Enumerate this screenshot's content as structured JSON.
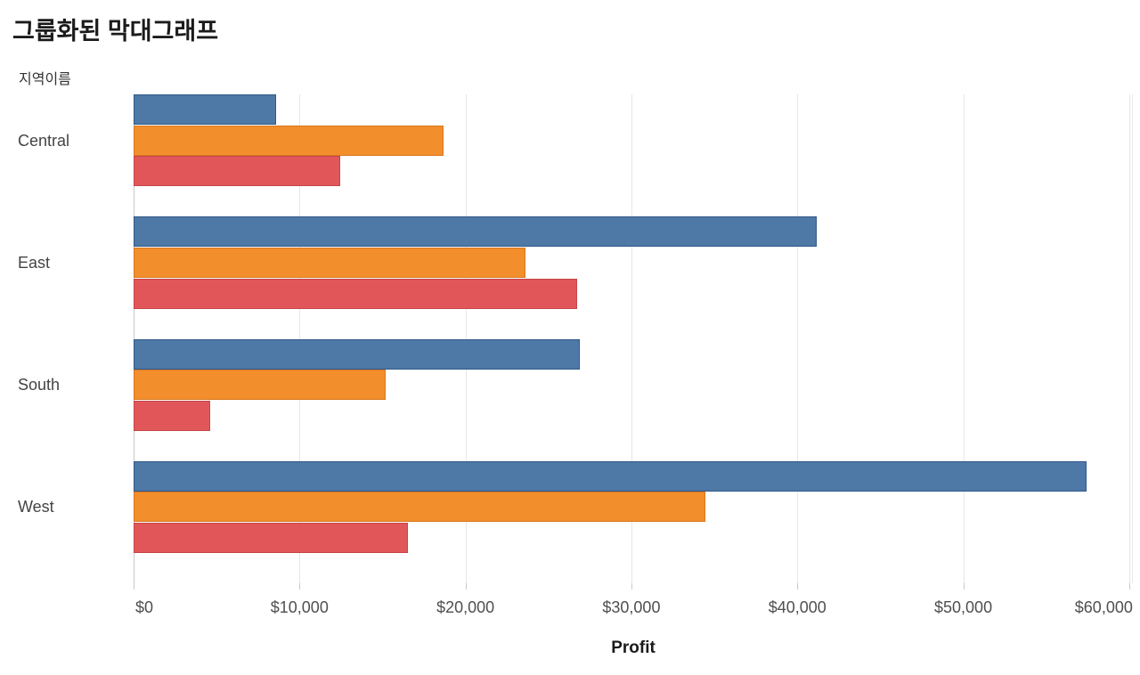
{
  "title": "그룹화된 막대그래프",
  "row_field_label": "지역이름",
  "axis": {
    "xlabel": "Profit",
    "tick_labels": [
      "$0",
      "$10,000",
      "$20,000",
      "$30,000",
      "$40,000",
      "$50,000",
      "$60,000"
    ],
    "tick_values": [
      0,
      10000,
      20000,
      30000,
      40000,
      50000,
      60000
    ]
  },
  "chart_data": {
    "type": "bar",
    "orientation": "horizontal",
    "title": "그룹화된 막대그래프",
    "xlabel": "Profit",
    "ylabel": "지역이름",
    "xlim": [
      0,
      60222
    ],
    "grid": "vertical, every 10000",
    "legend": "none visible",
    "categories": [
      "Central",
      "East",
      "South",
      "West"
    ],
    "series": [
      {
        "name": "series-blue",
        "color": "#4e79a7",
        "border_color": "#2e5787",
        "values": [
          8564,
          41191,
          26914,
          57451
        ]
      },
      {
        "name": "series-orange",
        "color": "#f28e2b",
        "border_color": "#d9771f",
        "values": [
          18704,
          23623,
          15215,
          34437
        ]
      },
      {
        "name": "series-red",
        "color": "#e15759",
        "border_color": "#c64448",
        "values": [
          12438,
          26709,
          4620,
          16530
        ]
      }
    ]
  }
}
